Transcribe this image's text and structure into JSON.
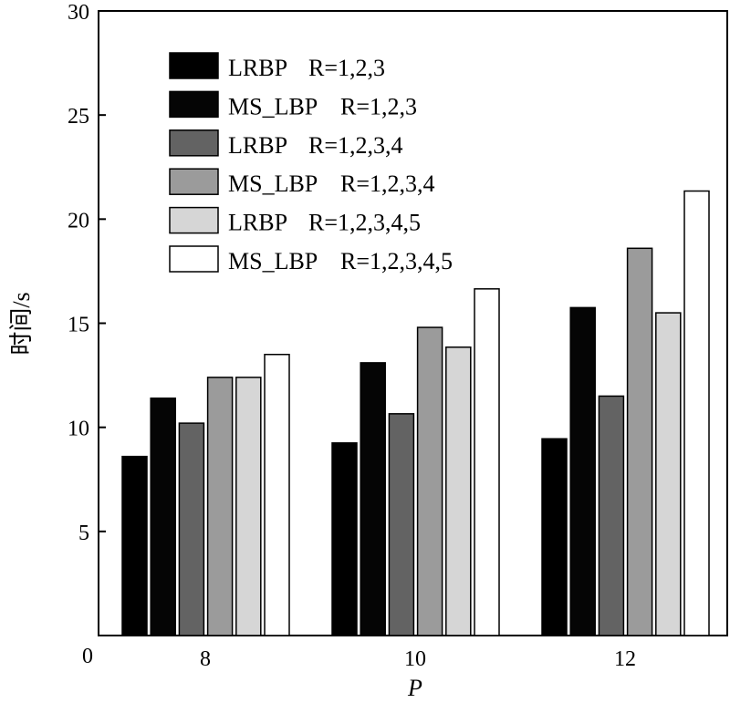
{
  "chart_data": {
    "type": "bar",
    "xlabel": "P",
    "ylabel": "时间/s",
    "categories": [
      "8",
      "10",
      "12"
    ],
    "ylim": [
      0,
      30
    ],
    "yticks": [
      "0",
      "5",
      "10",
      "15",
      "20",
      "25",
      "30"
    ],
    "grid": false,
    "legend_position": "top-left",
    "series": [
      {
        "name": "LRBP",
        "param": "R=1,2,3",
        "color": "#000000",
        "values": [
          8.6,
          9.25,
          9.45
        ]
      },
      {
        "name": "MS_LBP",
        "param": "R=1,2,3",
        "color": "#050505",
        "values": [
          11.4,
          13.1,
          15.75
        ]
      },
      {
        "name": "LRBP",
        "param": "R=1,2,3,4",
        "color": "#636363",
        "values": [
          10.2,
          10.65,
          11.5
        ]
      },
      {
        "name": "MS_LBP",
        "param": "R=1,2,3,4",
        "color": "#9b9b9b",
        "values": [
          12.4,
          14.8,
          18.6
        ]
      },
      {
        "name": "LRBP",
        "param": "R=1,2,3,4,5",
        "color": "#d6d6d6",
        "values": [
          12.4,
          13.85,
          15.5
        ]
      },
      {
        "name": "MS_LBP",
        "param": "R=1,2,3,4,5",
        "color": "#ffffff",
        "values": [
          13.5,
          16.65,
          21.35
        ]
      }
    ]
  }
}
